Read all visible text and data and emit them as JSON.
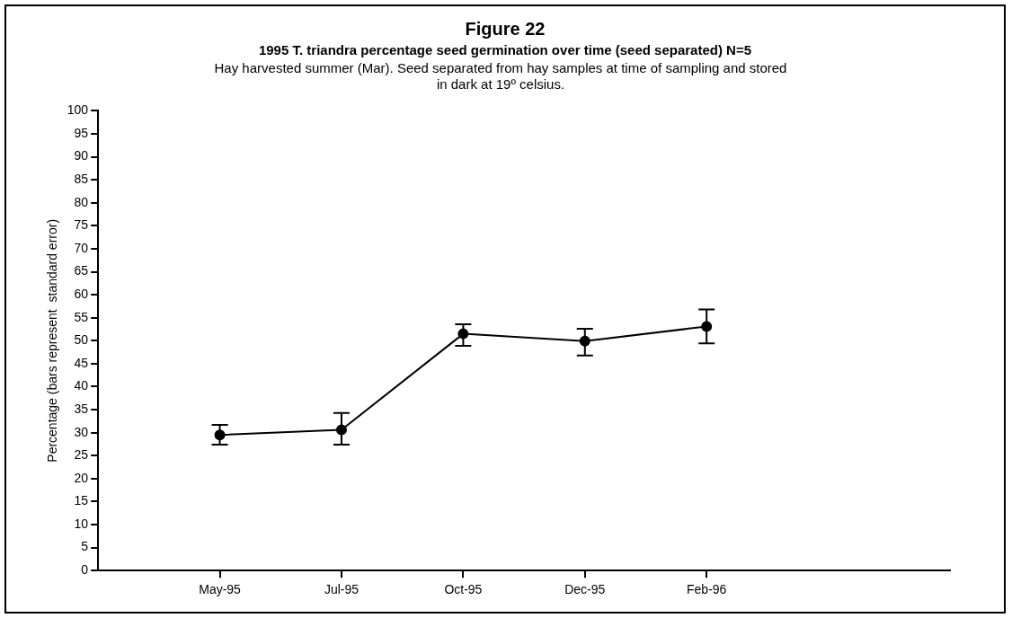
{
  "chart_data": {
    "type": "line",
    "title": "Figure 22",
    "subtitle": "1995  T. triandra  percentage seed germination over time (seed separated) N=5",
    "annotations": [
      "Hay harvested summer (Mar). Seed separated from hay samples at time of sampling and stored  in dark at 19º celsius."
    ],
    "ylabel": "Percentage (bars represent  standard error)",
    "categories": [
      null,
      "May-95",
      "Jul-95",
      "Oct-95",
      "Dec-95",
      "Feb-96",
      null,
      null
    ],
    "series": [
      {
        "color": "#000000",
        "values": [
          null,
          29.5,
          30.6,
          51.5,
          49.9,
          53.1,
          null,
          null
        ],
        "errors": [
          null,
          [
            27.4,
            31.7
          ],
          [
            27.4,
            34.3
          ],
          [
            48.9,
            53.6
          ],
          [
            46.8,
            52.6
          ],
          [
            49.4,
            56.8
          ],
          null,
          null
        ]
      }
    ],
    "ylim": [
      0,
      100
    ],
    "yticks": [
      0,
      5,
      10,
      15,
      20,
      25,
      30,
      35,
      40,
      45,
      50,
      55,
      60,
      65,
      70,
      75,
      80,
      85,
      90,
      95,
      100
    ],
    "grid": false,
    "legend": false,
    "marker": "circle",
    "line_style": "solid"
  }
}
